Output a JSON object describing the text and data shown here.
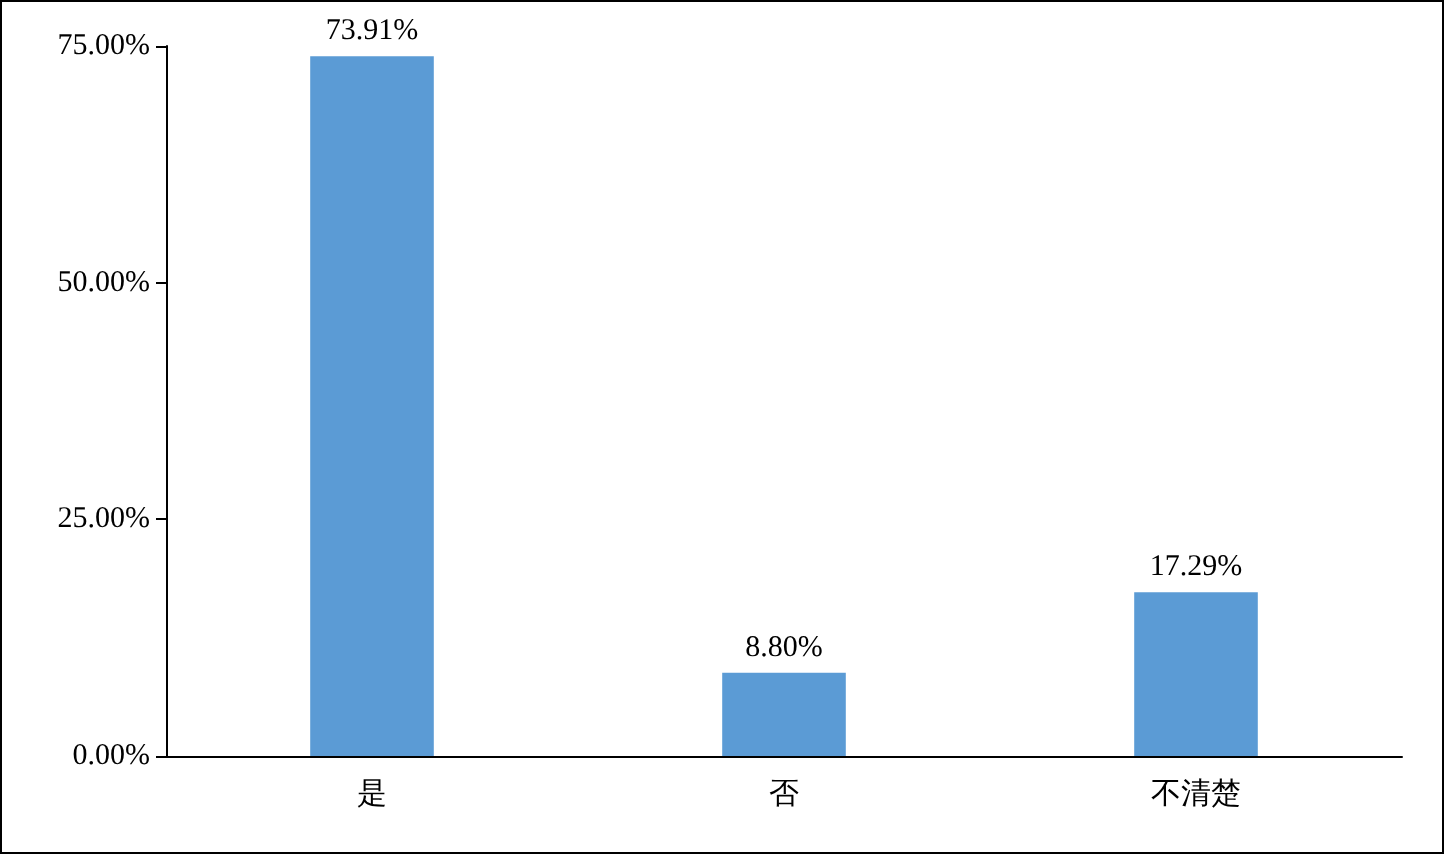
{
  "chart_data": {
    "type": "bar",
    "categories": [
      "是",
      "否",
      "不清楚"
    ],
    "values": [
      73.91,
      8.8,
      17.29
    ],
    "color": "#5b9bd5",
    "value_labels": [
      "73.91%",
      "8.80%",
      "17.29%"
    ],
    "ylim": [
      0,
      75
    ],
    "yticks": [
      {
        "value": 0,
        "label": "0.00%"
      },
      {
        "value": 25,
        "label": "25.00%"
      },
      {
        "value": 50,
        "label": "50.00%"
      },
      {
        "value": 75,
        "label": "75.00%"
      }
    ],
    "grid": false
  }
}
